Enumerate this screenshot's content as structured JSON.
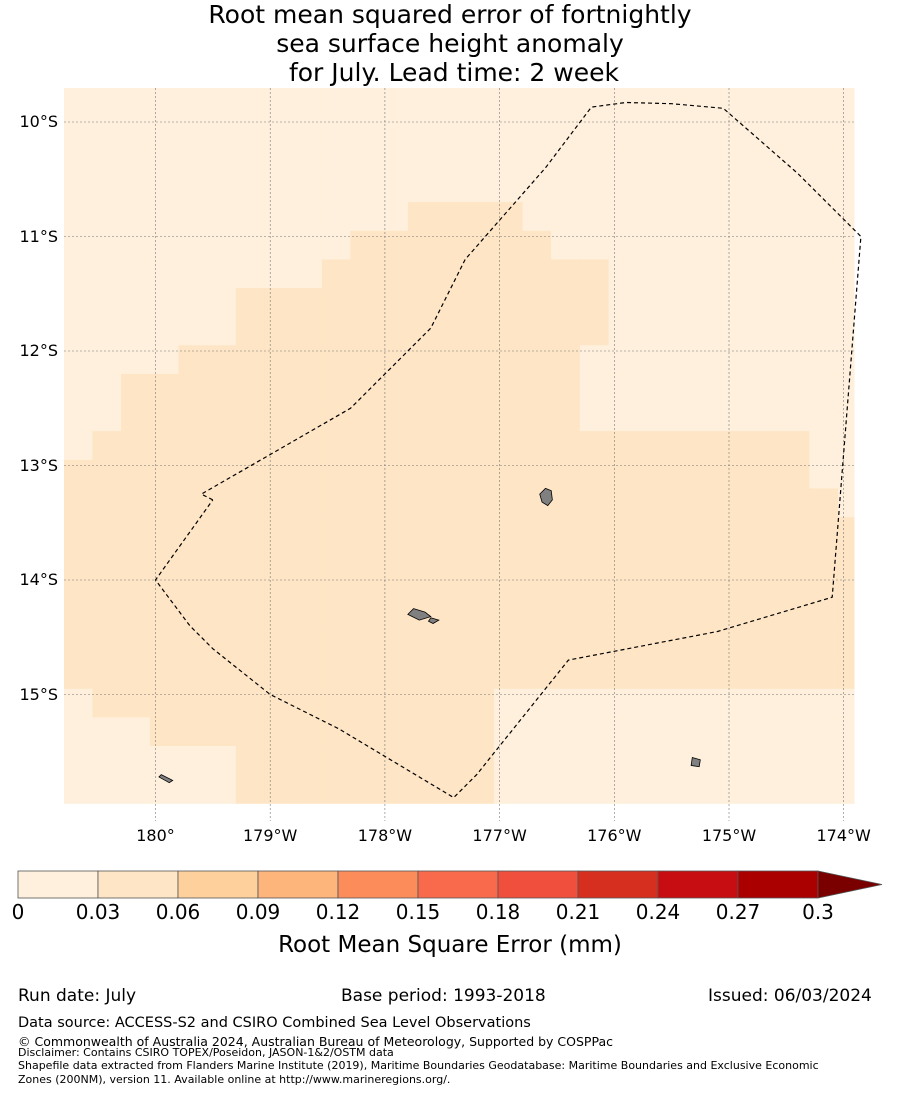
{
  "title_lines": [
    "Root mean squared error of fortnightly",
    "sea surface height anomaly",
    " for July. Lead time: 2 week"
  ],
  "map": {
    "lon_range": [
      179.2,
      186.1
    ],
    "lat_range": [
      -16.1,
      -9.7
    ],
    "lat_ticks": [
      {
        "value": -10,
        "label": "10°S"
      },
      {
        "value": -11,
        "label": "11°S"
      },
      {
        "value": -12,
        "label": "12°S"
      },
      {
        "value": -13,
        "label": "13°S"
      },
      {
        "value": -14,
        "label": "14°S"
      },
      {
        "value": -15,
        "label": "15°S"
      }
    ],
    "lon_ticks": [
      {
        "value": 180,
        "label": "180°"
      },
      {
        "value": 181,
        "label": "179°W"
      },
      {
        "value": 182,
        "label": "178°W"
      },
      {
        "value": 183,
        "label": "177°W"
      },
      {
        "value": 184,
        "label": "176°W"
      },
      {
        "value": 185,
        "label": "175°W"
      },
      {
        "value": 186,
        "label": "174°W"
      }
    ],
    "grid_origin": {
      "lon": 179.2,
      "lat": -9.7
    },
    "cell_size_deg": 0.25,
    "cell_value_legend": {
      "0": "0 - 0.03",
      "1": "0.03 - 0.06"
    },
    "grid_rows": [
      "0000000000000000000000000000",
      "0000000000000000000000000000",
      "0000000000000000000000000000",
      "0000000000000000000000000000",
      "0000000000001111000000000000",
      "0000000000111111100000000000",
      "0000000001111111111000000000",
      "0000001111111111111000000000",
      "0000001111111111111000000000",
      "0000111111111111110000000000",
      "0011111111111111110000000000",
      "0011111111111111110000000000",
      "0111111111111111111111111100",
      "1111111111111111111111111100",
      "1111111111111111111111111110",
      "1111111111111111111111111111",
      "1111111111111111111111111111",
      "1111111111111111111111111111",
      "1111111111111111111111111111",
      "1111111111111111111111111111",
      "1111111111111111111111111111",
      "0111111111111110000000000000",
      "0001111111111110000000000000",
      "0000001111111110000000000000",
      "0000001111111110000000000000"
    ],
    "eez_boundary": [
      [
        180.5,
        -13.3
      ],
      [
        180.4,
        -13.25
      ],
      [
        181.7,
        -12.5
      ],
      [
        182.4,
        -11.8
      ],
      [
        182.7,
        -11.2
      ],
      [
        183.4,
        -10.4
      ],
      [
        183.8,
        -9.87
      ],
      [
        184.1,
        -9.83
      ],
      [
        184.5,
        -9.84
      ],
      [
        184.95,
        -9.88
      ],
      [
        185.6,
        -10.45
      ],
      [
        186.15,
        -11.0
      ],
      [
        185.9,
        -14.15
      ],
      [
        184.9,
        -14.45
      ],
      [
        183.6,
        -14.7
      ],
      [
        182.8,
        -15.7
      ],
      [
        182.6,
        -15.9
      ],
      [
        181.6,
        -15.3
      ],
      [
        181.0,
        -15.0
      ],
      [
        180.5,
        -14.6
      ],
      [
        180.3,
        -14.4
      ],
      [
        180.0,
        -14.0
      ],
      [
        180.5,
        -13.3
      ]
    ],
    "islands": [
      [
        [
          183.4,
          -13.2
        ],
        [
          183.45,
          -13.22
        ],
        [
          183.46,
          -13.3
        ],
        [
          183.42,
          -13.35
        ],
        [
          183.37,
          -13.32
        ],
        [
          183.35,
          -13.25
        ]
      ],
      [
        [
          182.25,
          -14.25
        ],
        [
          182.35,
          -14.28
        ],
        [
          182.4,
          -14.32
        ],
        [
          182.3,
          -14.35
        ],
        [
          182.2,
          -14.3
        ]
      ],
      [
        [
          182.4,
          -14.33
        ],
        [
          182.47,
          -14.35
        ],
        [
          182.42,
          -14.38
        ],
        [
          182.38,
          -14.36
        ]
      ],
      [
        [
          184.68,
          -15.55
        ],
        [
          184.75,
          -15.57
        ],
        [
          184.74,
          -15.63
        ],
        [
          184.67,
          -15.62
        ]
      ],
      [
        [
          180.05,
          -15.7
        ],
        [
          180.15,
          -15.75
        ],
        [
          180.12,
          -15.77
        ],
        [
          180.03,
          -15.72
        ]
      ]
    ]
  },
  "colorbar": {
    "colors": [
      "#fff0dd",
      "#fee5c5",
      "#fdd09c",
      "#fdb57b",
      "#fc8c59",
      "#f96a4d",
      "#f14f3e",
      "#d62e1f",
      "#c80d12",
      "#ab0000"
    ],
    "extend_color": "#7a0000",
    "tick_labels": [
      "0",
      "0.03",
      "0.06",
      "0.09",
      "0.12",
      "0.15",
      "0.18",
      "0.21",
      "0.24",
      "0.27",
      "0.3"
    ],
    "label": "Root Mean Square Error (mm)"
  },
  "meta": {
    "run_date": "Run date: July",
    "base_period": "Base period: 1993-2018",
    "issued": "Issued: 06/03/2024"
  },
  "footer": {
    "data_source": "Data source: ACCESS-S2 and CSIRO Combined Sea Level Observations",
    "copyright": "© Commonwealth of Australia 2024, Australian Bureau of Meteorology, Supported by COSPPac",
    "disclaimer": "Disclaimer: Contains CSIRO TOPEX/Poseidon, JASON-1&2/OSTM data",
    "shapefile_1": "Shapefile data extracted from Flanders Marine Institute (2019), Maritime Boundaries Geodatabase: Maritime Boundaries and Exclusive Economic",
    "shapefile_2": "Zones (200NM), version 11. Available online at http://www.marineregions.org/."
  }
}
